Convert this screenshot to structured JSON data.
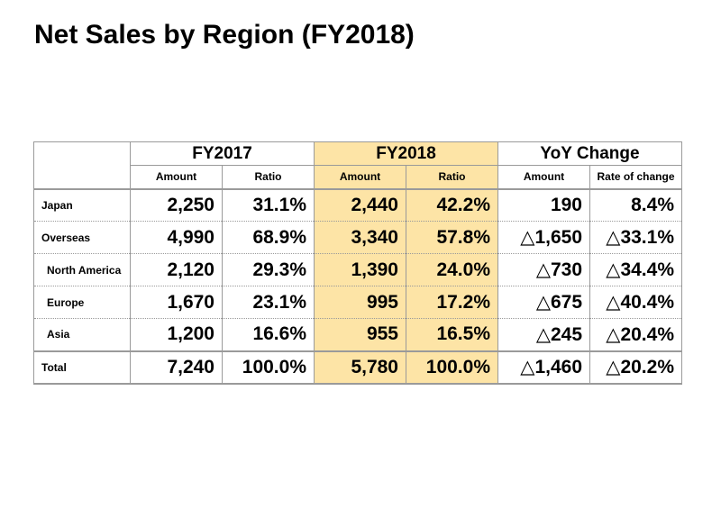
{
  "title": "Net Sales by Region (FY2018)",
  "highlight_color": "#fde4a6",
  "header": {
    "groups": [
      "FY2017",
      "FY2018",
      "YoY Change"
    ],
    "sub": [
      "Amount",
      "Ratio",
      "Amount",
      "Ratio",
      "Amount",
      "Rate of change"
    ]
  },
  "rows": [
    {
      "label": "Japan",
      "cells": [
        "2,250",
        "31.1%",
        "2,440",
        "42.2%",
        "190",
        "8.4%"
      ]
    },
    {
      "label": "Overseas",
      "cells": [
        "4,990",
        "68.9%",
        "3,340",
        "57.8%",
        "△1,650",
        "△33.1%"
      ]
    },
    {
      "label": "North America",
      "cells": [
        "2,120",
        "29.3%",
        "1,390",
        "24.0%",
        "△730",
        "△34.4%"
      ]
    },
    {
      "label": "Europe",
      "cells": [
        "1,670",
        "23.1%",
        "995",
        "17.2%",
        "△675",
        "△40.4%"
      ]
    },
    {
      "label": "Asia",
      "cells": [
        "1,200",
        "16.6%",
        "955",
        "16.5%",
        "△245",
        "△20.4%"
      ]
    },
    {
      "label": "Total",
      "cells": [
        "7,240",
        "100.0%",
        "5,780",
        "100.0%",
        "△1,460",
        "△20.2%"
      ]
    }
  ]
}
